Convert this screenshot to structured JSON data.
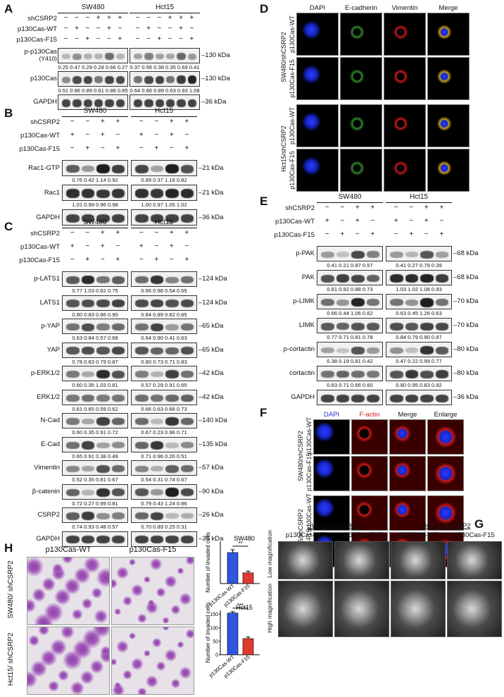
{
  "panels": {
    "A": {
      "label": "A",
      "cells": [
        "SW480",
        "Hct15"
      ],
      "rows": [
        {
          "name": "shCSRP2",
          "signs": [
            "−",
            "−",
            "−",
            "+",
            "+",
            "+",
            "−",
            "−",
            "−",
            "+",
            "+",
            "+"
          ]
        },
        {
          "name": "p130Cas-WT",
          "signs": [
            "−",
            "+",
            "−",
            "−",
            "+",
            "−",
            "−",
            "+",
            "−",
            "−",
            "+",
            "−"
          ]
        },
        {
          "name": "p130Cas-F15",
          "signs": [
            "−",
            "−",
            "+",
            "−",
            "−",
            "+",
            "−",
            "−",
            "+",
            "−",
            "−",
            "+"
          ]
        }
      ],
      "blots": [
        {
          "name": "p-p130Cas",
          "name2": "(Y410)",
          "size": "130 kDa",
          "q1": "0.25 0.47 0.29 0.28 0.66 0.27",
          "q2": "0.37 0.56 0.38 0.35 0.69 0.41",
          "bands": [
            0.25,
            0.47,
            0.29,
            0.28,
            0.66,
            0.27,
            0.37,
            0.56,
            0.38,
            0.35,
            0.69,
            0.41
          ]
        },
        {
          "name": "p130Cas",
          "name2": "",
          "size": "130 kDa",
          "q1": "0.51 0.86 0.89 0.61 0.88 0.85",
          "q2": "0.64 0.86 0.89 0.63 0.93 1.08",
          "bands": [
            0.51,
            0.86,
            0.89,
            0.61,
            0.88,
            0.85,
            0.64,
            0.86,
            0.89,
            0.63,
            0.93,
            1.08
          ]
        },
        {
          "name": "GAPDH",
          "name2": "",
          "size": "36 kDa",
          "q1": "",
          "q2": "",
          "bands": [
            0.9,
            0.9,
            0.9,
            0.9,
            0.9,
            0.9,
            0.9,
            0.9,
            0.9,
            0.9,
            0.9,
            0.9
          ]
        }
      ]
    },
    "B": {
      "label": "B",
      "cells": [
        "SW480",
        "Hct15"
      ],
      "rows": [
        {
          "name": "shCSRP2",
          "signs": [
            "−",
            "−",
            "+",
            "+",
            "−",
            "−",
            "+",
            "+"
          ]
        },
        {
          "name": "p130Cas-WT",
          "signs": [
            "+",
            "−",
            "+",
            "−",
            "+",
            "−",
            "+",
            "−"
          ]
        },
        {
          "name": "p130Cas-F15",
          "signs": [
            "−",
            "+",
            "−",
            "+",
            "−",
            "+",
            "−",
            "+"
          ]
        }
      ],
      "blots": [
        {
          "name": "Rac1-GTP",
          "size": "21 kDa",
          "q1": "0.76 0.42 1.14 0.92",
          "q2": "0.89 0.37 1.16 0.82",
          "bands": [
            0.76,
            0.42,
            1.14,
            0.92,
            0.89,
            0.37,
            1.16,
            0.82
          ]
        },
        {
          "name": "Rac1",
          "size": "21 kDa",
          "q1": "1.01 0.99 0.96 0.98",
          "q2": "1.00 0.97 1.05 1.02",
          "bands": [
            1.01,
            0.99,
            0.96,
            0.98,
            1.0,
            0.97,
            1.05,
            1.02
          ]
        },
        {
          "name": "GAPDH",
          "size": "36 kDa",
          "q1": "",
          "q2": "",
          "bands": [
            0.9,
            0.9,
            0.9,
            0.9,
            0.9,
            0.9,
            0.9,
            0.9
          ]
        }
      ]
    },
    "C": {
      "label": "C",
      "cells": [
        "SW480",
        "Hct15"
      ],
      "rows": [
        {
          "name": "shCSRP2",
          "signs": [
            "−",
            "−",
            "+",
            "+",
            "−",
            "−",
            "+",
            "+"
          ]
        },
        {
          "name": "p130Cas-WT",
          "signs": [
            "+",
            "−",
            "+",
            "−",
            "+",
            "−",
            "+",
            "−"
          ]
        },
        {
          "name": "p130Cas-F15",
          "signs": [
            "−",
            "+",
            "−",
            "+",
            "−",
            "+",
            "−",
            "+"
          ]
        }
      ],
      "blots": [
        {
          "name": "p-LATS1",
          "size": "124 kDa",
          "q1": "0.77 1.03 0.62 0.75",
          "q2": "0.66 0.98 0.54 0.65",
          "bands": [
            0.77,
            1.03,
            0.62,
            0.75,
            0.66,
            0.98,
            0.54,
            0.65
          ]
        },
        {
          "name": "LATS1",
          "size": "124 kDa",
          "q1": "0.80 0.83 0.86 0.90",
          "q2": "0.84 0.89 0.82 0.85",
          "bands": [
            0.8,
            0.83,
            0.86,
            0.9,
            0.84,
            0.89,
            0.82,
            0.85
          ]
        },
        {
          "name": "p-YAP",
          "size": "65 kDa",
          "q1": "0.63 0.84 0.57 0.68",
          "q2": "0.64 0.90 0.41 0.63",
          "bands": [
            0.63,
            0.84,
            0.57,
            0.68,
            0.64,
            0.9,
            0.41,
            0.63
          ]
        },
        {
          "name": "YAP",
          "size": "65 kDa",
          "q1": "0.78 0.83 0.79 0.87",
          "q2": "0.80 0.73 0.71 0.83",
          "bands": [
            0.78,
            0.83,
            0.79,
            0.87,
            0.8,
            0.73,
            0.71,
            0.83
          ]
        },
        {
          "name": "p-ERK1/2",
          "size": "42 kDa",
          "q1": "0.60 0.35 1.03 0.81",
          "q2": "0.57 0.29 0.91 0.65",
          "bands": [
            0.6,
            0.35,
            1.03,
            0.81,
            0.57,
            0.29,
            0.91,
            0.65
          ]
        },
        {
          "name": "ERK1/2",
          "size": "42 kDa",
          "q1": "0.61 0.65 0.59 0.62",
          "q2": "0.66 0.63 0.68 0.73",
          "bands": [
            0.61,
            0.65,
            0.59,
            0.62,
            0.66,
            0.63,
            0.68,
            0.73
          ]
        },
        {
          "name": "N-Cad",
          "size": "140 kDa",
          "q1": "0.60 0.35 0.91 0.72",
          "q2": "0.67 0.23 0.96 0.71",
          "bands": [
            0.6,
            0.35,
            0.91,
            0.72,
            0.67,
            0.23,
            0.96,
            0.71
          ]
        },
        {
          "name": "E-Cad",
          "size": "135 kDa",
          "q1": "0.65 0.91 0.38 0.49",
          "q2": "0.71 0.96 0.26 0.51",
          "bands": [
            0.65,
            0.91,
            0.38,
            0.49,
            0.71,
            0.96,
            0.26,
            0.51
          ]
        },
        {
          "name": "Vimentin",
          "size": "57 kDa",
          "q1": "0.52 0.35 0.81 0.67",
          "q2": "0.54 0.31 0.74 0.67",
          "bands": [
            0.52,
            0.35,
            0.81,
            0.67,
            0.54,
            0.31,
            0.74,
            0.67
          ]
        },
        {
          "name": "β-catenin",
          "size": "90 kDa",
          "q1": "0.72 0.27 0.99 0.81",
          "q2": "0.79 0.43 1.24 0.86",
          "bands": [
            0.72,
            0.27,
            0.99,
            0.81,
            0.79,
            0.43,
            1.24,
            0.86
          ]
        },
        {
          "name": "CSRP2",
          "size": "26 kDa",
          "q1": "0.74 0.93 0.48 0.57",
          "q2": "0.70 0.89 0.25 0.31",
          "bands": [
            0.74,
            0.93,
            0.48,
            0.57,
            0.7,
            0.89,
            0.25,
            0.31
          ]
        },
        {
          "name": "GAPDH",
          "size": "36 kDa",
          "q1": "",
          "q2": "",
          "bands": [
            0.9,
            0.9,
            0.9,
            0.9,
            0.9,
            0.9,
            0.9,
            0.9
          ]
        }
      ]
    },
    "D": {
      "label": "D",
      "columns": [
        "DAPI",
        "E-cadherin",
        "Vimentin",
        "Merge"
      ],
      "groups": [
        {
          "cell": "SW480/shCSRP2",
          "rows": [
            "p130Cas-WT",
            "p130Cas-F15"
          ]
        },
        {
          "cell": "Hct15/shCSRP2",
          "rows": [
            "p130Cas-WT",
            "p130Cas-F15"
          ]
        }
      ]
    },
    "E": {
      "label": "E",
      "cells": [
        "SW480",
        "Hct15"
      ],
      "rows": [
        {
          "name": "shCSRP2",
          "signs": [
            "−",
            "−",
            "+",
            "+",
            "−",
            "−",
            "+",
            "+"
          ]
        },
        {
          "name": "p130Cas-WT",
          "signs": [
            "+",
            "−",
            "+",
            "−",
            "+",
            "−",
            "+",
            "−"
          ]
        },
        {
          "name": "p130Cas-F15",
          "signs": [
            "−",
            "+",
            "−",
            "+",
            "−",
            "+",
            "−",
            "+"
          ]
        }
      ],
      "blots": [
        {
          "name": "p-PAK",
          "size": "68 kDa",
          "q1": "0.41 0.21 0.87 0.57",
          "q2": "0.41 0.27 0.79 0.39",
          "bands": [
            0.41,
            0.21,
            0.87,
            0.57,
            0.41,
            0.27,
            0.79,
            0.39
          ]
        },
        {
          "name": "PAK",
          "size": "68 kDa",
          "q1": "0.81 0.92 0.88 0.73",
          "q2": "1.03 1.02 1.08 0.93",
          "bands": [
            0.81,
            0.92,
            0.88,
            0.73,
            1.03,
            1.02,
            1.08,
            0.93
          ]
        },
        {
          "name": "p-LIMK",
          "size": "70 kDa",
          "q1": "0.66 0.44 1.06 0.62",
          "q2": "0.63 0.45 1.26 0.63",
          "bands": [
            0.66,
            0.44,
            1.06,
            0.62,
            0.63,
            0.45,
            1.26,
            0.63
          ]
        },
        {
          "name": "LIMK",
          "size": "70 kDa",
          "q1": "0.77 0.71 0.81 0.78",
          "q2": "0.84 0.79 0.90 0.87",
          "bands": [
            0.77,
            0.71,
            0.81,
            0.78,
            0.84,
            0.79,
            0.9,
            0.87
          ]
        },
        {
          "name": "p-cortactin",
          "size": "80 kDa",
          "q1": "0.38 0.19 0.81 0.42",
          "q2": "0.47 0.22 0.99 0.77",
          "bands": [
            0.38,
            0.19,
            0.81,
            0.42,
            0.47,
            0.22,
            0.99,
            0.77
          ]
        },
        {
          "name": "cortactin",
          "size": "80 kDa",
          "q1": "0.63 0.71 0.66 0.60",
          "q2": "0.80 0.95 0.83 0.92",
          "bands": [
            0.63,
            0.71,
            0.66,
            0.6,
            0.8,
            0.95,
            0.83,
            0.92
          ]
        },
        {
          "name": "GAPDH",
          "size": "36 kDa",
          "q1": "",
          "q2": "",
          "bands": [
            0.9,
            0.9,
            0.9,
            0.9,
            0.9,
            0.9,
            0.9,
            0.9
          ]
        }
      ]
    },
    "F": {
      "label": "F",
      "columns": [
        "DAPI",
        "F-actin",
        "Merge",
        "Enlarge"
      ],
      "groups": [
        {
          "cell": "SW480/shCSRP2",
          "rows": [
            "p130Cas-WT",
            "p130Cas-F15"
          ]
        },
        {
          "cell": "Hct15/shCSRP2",
          "rows": [
            "p130Cas-WT",
            "p130Cas-F15"
          ]
        }
      ]
    },
    "G": {
      "label": "G",
      "groups": [
        "SW480/shCSRP2",
        "Hct15/shCSRP2"
      ],
      "columns": [
        "p130Cas-WT",
        "p130Cas-F15",
        "p130Cas-WT",
        "p130Cas-F15"
      ],
      "rows": [
        "Low magnification",
        "High magnification"
      ]
    },
    "H": {
      "label": "H",
      "columns": [
        "p130Cas-WT",
        "p130Cas-F15"
      ],
      "rows": [
        "SW480/ shCSRP2",
        "Hct15/ shCSRP2"
      ],
      "ylabel": "Number of invaded cells",
      "colors": {
        "wt": "#2f56e0",
        "f15": "#e03a2f"
      }
    }
  },
  "chart_data": [
    {
      "type": "bar",
      "title": "SW480",
      "categories": [
        "p130Cas-WT",
        "p130Cas-F15"
      ],
      "values": [
        110,
        38
      ],
      "errors": [
        10,
        6
      ],
      "ylim": [
        0,
        150
      ],
      "yticks": [],
      "significance": "**",
      "ylabel": "Number of invaded cells"
    },
    {
      "type": "bar",
      "title": "Hct15",
      "categories": [
        "p130Cas-WT",
        "p130Cas-F15"
      ],
      "values": [
        155,
        60
      ],
      "errors": [
        5,
        6
      ],
      "ylim": [
        0,
        165
      ],
      "yticks": [
        0,
        50,
        100,
        150
      ],
      "significance": "***",
      "ylabel": "Number of invaded cells"
    }
  ]
}
